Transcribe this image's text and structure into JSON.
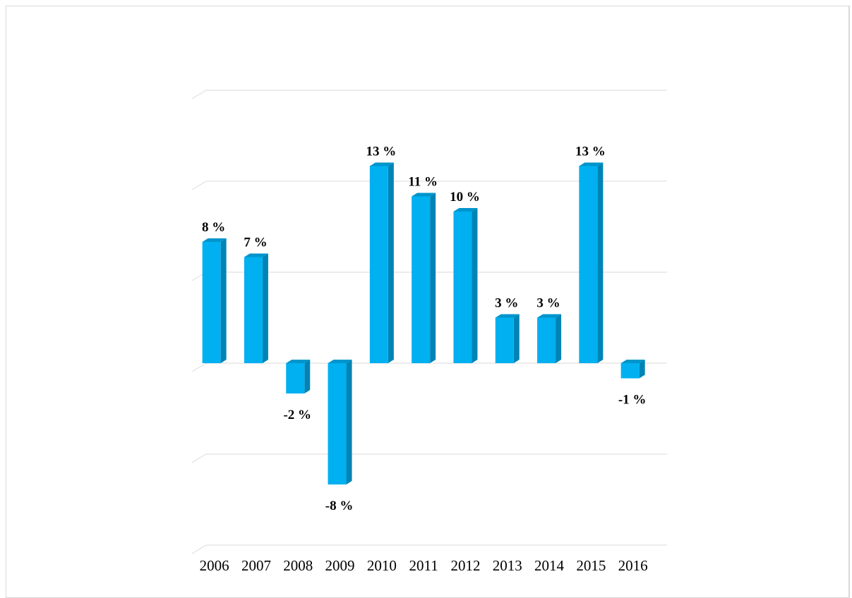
{
  "chart_data": {
    "type": "bar",
    "categories": [
      "2006",
      "2007",
      "2008",
      "2009",
      "2010",
      "2011",
      "2012",
      "2013",
      "2014",
      "2015",
      "2016"
    ],
    "values": [
      8,
      7,
      -2,
      -8,
      13,
      11,
      10,
      3,
      3,
      13,
      -1
    ],
    "data_labels": [
      "8 %",
      "7 %",
      "-2 %",
      "-8 %",
      "13 %",
      "11 %",
      "10 %",
      "3 %",
      "3 %",
      "13 %",
      "-1 %"
    ],
    "title": "",
    "xlabel": "",
    "ylabel": "",
    "ylim": [
      -12,
      18
    ],
    "grid": true,
    "legend": "none",
    "style": "3d-column",
    "colors": {
      "bar_front": "#00b0f0",
      "bar_side": "#0084b5",
      "bar_top": "#0095cc",
      "grid": "#d9d9d9"
    }
  }
}
